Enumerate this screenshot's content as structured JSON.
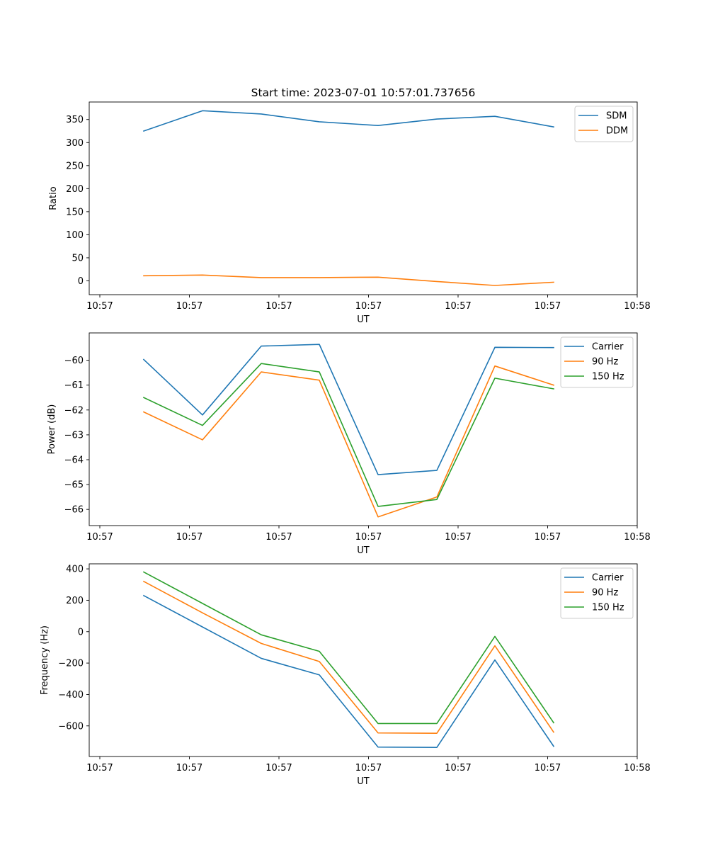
{
  "chart_data": [
    {
      "type": "line",
      "title": "Start time: 2023-07-01 10:57:01.737656",
      "xlabel": "UT",
      "ylabel": "Ratio",
      "x_tick_labels": [
        "10:57",
        "10:57",
        "10:57",
        "10:57",
        "10:57",
        "10:57",
        "10:58"
      ],
      "y_ticks": [
        0,
        50,
        100,
        150,
        200,
        250,
        300,
        350
      ],
      "y_tick_labels": [
        "0",
        "50",
        "100",
        "150",
        "200",
        "250",
        "300",
        "350"
      ],
      "ylim": [
        -30,
        388
      ],
      "legend_position": "top-right",
      "series": [
        {
          "name": "SDM",
          "color": "#1f77b4",
          "values": [
            325,
            369,
            362,
            345,
            337,
            351,
            357,
            334
          ]
        },
        {
          "name": "DDM",
          "color": "#ff7f0e",
          "values": [
            11,
            12.5,
            7,
            7,
            8,
            -1.5,
            -10,
            -3
          ]
        }
      ]
    },
    {
      "type": "line",
      "title": "",
      "xlabel": "UT",
      "ylabel": "Power (dB)",
      "x_tick_labels": [
        "10:57",
        "10:57",
        "10:57",
        "10:57",
        "10:57",
        "10:57",
        "10:58"
      ],
      "y_ticks": [
        -66,
        -65,
        -64,
        -63,
        -62,
        -61,
        -60
      ],
      "y_tick_labels": [
        "−66",
        "−65",
        "−64",
        "−63",
        "−62",
        "−61",
        "−60"
      ],
      "ylim": [
        -66.65,
        -58.9
      ],
      "legend_position": "top-right",
      "series": [
        {
          "name": "Carrier",
          "color": "#1f77b4",
          "values": [
            -59.97,
            -62.2,
            -59.43,
            -59.36,
            -64.6,
            -64.43,
            -59.48,
            -59.49
          ]
        },
        {
          "name": "90 Hz",
          "color": "#ff7f0e",
          "values": [
            -62.08,
            -63.2,
            -60.47,
            -60.8,
            -66.3,
            -65.5,
            -60.23,
            -61.0
          ]
        },
        {
          "name": "150 Hz",
          "color": "#2ca02c",
          "values": [
            -61.5,
            -62.62,
            -60.13,
            -60.47,
            -65.88,
            -65.6,
            -60.72,
            -61.15
          ]
        }
      ]
    },
    {
      "type": "line",
      "title": "",
      "xlabel": "UT",
      "ylabel": "Frequency (Hz)",
      "x_tick_labels": [
        "10:57",
        "10:57",
        "10:57",
        "10:57",
        "10:57",
        "10:57",
        "10:58"
      ],
      "y_ticks": [
        -600,
        -400,
        -200,
        0,
        200,
        400
      ],
      "y_tick_labels": [
        "−600",
        "−400",
        "−200",
        "0",
        "200",
        "400"
      ],
      "ylim": [
        -795,
        432
      ],
      "legend_position": "top-right",
      "series": [
        {
          "name": "Carrier",
          "color": "#1f77b4",
          "values": [
            230,
            30,
            -170,
            -275,
            -735,
            -737,
            -180,
            -730
          ]
        },
        {
          "name": "90 Hz",
          "color": "#ff7f0e",
          "values": [
            320,
            120,
            -75,
            -190,
            -645,
            -647,
            -90,
            -640
          ]
        },
        {
          "name": "150 Hz",
          "color": "#2ca02c",
          "values": [
            380,
            180,
            -20,
            -125,
            -585,
            -585,
            -30,
            -580
          ]
        }
      ]
    }
  ]
}
